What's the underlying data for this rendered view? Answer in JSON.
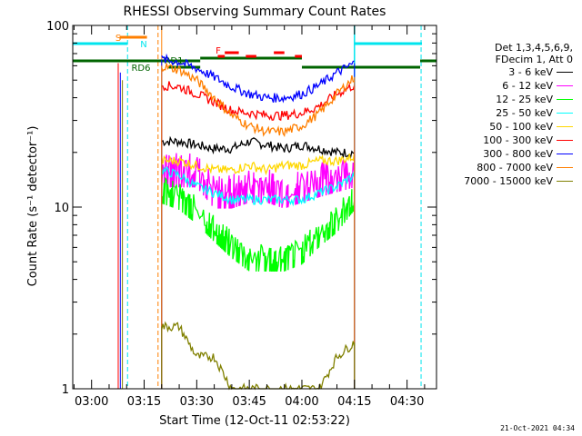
{
  "chart_data": {
    "type": "line",
    "title": "RHESSI Observing Summary Count Rates",
    "xlabel": "Start Time (12-Oct-11 02:53:22)",
    "ylabel": "Count Rate (s⁻¹ detector⁻¹)",
    "y_scale": "log",
    "ylim": [
      1,
      100
    ],
    "x_minutes_range": [
      -5.37,
      98.4
    ],
    "x_ticks": [
      "03:00",
      "03:15",
      "03:30",
      "03:45",
      "04:00",
      "04:15",
      "04:30"
    ],
    "y_ticks": [
      "1",
      "10",
      "100"
    ],
    "grid": false,
    "legend_position": "right",
    "legend_header": [
      "Det 1,3,4,5,6,9,",
      "FDecim 1, Att 0"
    ],
    "timestamp": "21-Oct-2021 04:34",
    "data_gap_minutes": [
      [
        10,
        20
      ],
      [
        75,
        88
      ]
    ],
    "flags": [
      {
        "label": "S",
        "color": "#ff7f00"
      },
      {
        "label": "N",
        "color": "#00e5ee"
      },
      {
        "label": "RD1",
        "color": "#006400"
      },
      {
        "label": "RD6",
        "color": "#006400"
      },
      {
        "label": "F",
        "color": "#ff0000"
      }
    ],
    "series": [
      {
        "name": "3 - 6 keV",
        "color": "#000000",
        "x": [
          20,
          25,
          30,
          35,
          40,
          45,
          50,
          55,
          60,
          65,
          70,
          75
        ],
        "y": [
          23,
          23,
          22,
          21,
          21,
          23,
          22,
          21,
          22,
          21,
          20,
          20
        ]
      },
      {
        "name": "6 - 12 keV",
        "color": "#ff00ff",
        "x": [
          20,
          25,
          30,
          35,
          40,
          45,
          50,
          55,
          60,
          65,
          70,
          75
        ],
        "y": [
          17,
          17,
          17,
          13,
          13,
          14,
          14,
          13,
          14,
          15,
          16,
          17
        ]
      },
      {
        "name": "12 - 25 keV",
        "color": "#00ff00",
        "x": [
          20,
          25,
          30,
          35,
          40,
          45,
          50,
          55,
          60,
          65,
          70,
          75
        ],
        "y": [
          13,
          12,
          10,
          8,
          6.5,
          5.5,
          5.5,
          5.5,
          6,
          7.5,
          9,
          12
        ]
      },
      {
        "name": "25 - 50 keV",
        "color": "#00ffff",
        "x": [
          20,
          25,
          30,
          35,
          40,
          45,
          50,
          55,
          60,
          65,
          70,
          75
        ],
        "y": [
          16,
          15,
          13,
          12,
          11,
          11,
          11,
          11,
          11,
          12,
          13,
          15
        ]
      },
      {
        "name": "50 - 100 keV",
        "color": "#ffd700",
        "x": [
          20,
          25,
          30,
          35,
          40,
          45,
          50,
          55,
          60,
          65,
          70,
          75
        ],
        "y": [
          18,
          18,
          17,
          16,
          16,
          17,
          16,
          17,
          17,
          18,
          18,
          19
        ]
      },
      {
        "name": "100 - 300 keV",
        "color": "#ff0000",
        "x": [
          20,
          25,
          30,
          35,
          40,
          45,
          50,
          55,
          60,
          65,
          70,
          75
        ],
        "y": [
          47,
          46,
          42,
          38,
          34,
          33,
          32,
          32,
          33,
          36,
          42,
          47
        ]
      },
      {
        "name": "300 - 800 keV",
        "color": "#0000ff",
        "x": [
          20,
          25,
          30,
          35,
          40,
          45,
          50,
          55,
          60,
          65,
          70,
          75
        ],
        "y": [
          65,
          63,
          58,
          52,
          46,
          42,
          40,
          40,
          42,
          47,
          55,
          62
        ]
      },
      {
        "name": "800 - 7000 keV",
        "color": "#ff7f00",
        "x": [
          20,
          25,
          30,
          35,
          40,
          45,
          50,
          55,
          60,
          65,
          70,
          75
        ],
        "y": [
          60,
          57,
          50,
          40,
          32,
          28,
          26,
          26,
          28,
          33,
          42,
          52
        ]
      },
      {
        "name": "7000 - 15000 keV",
        "color": "#808000",
        "x": [
          20,
          25,
          30,
          35,
          40,
          45,
          50,
          55,
          60,
          65,
          70,
          75
        ],
        "y": [
          2.2,
          2.2,
          1.5,
          1.5,
          1,
          1,
          1,
          1,
          1,
          1,
          1.5,
          1.8
        ]
      }
    ]
  }
}
